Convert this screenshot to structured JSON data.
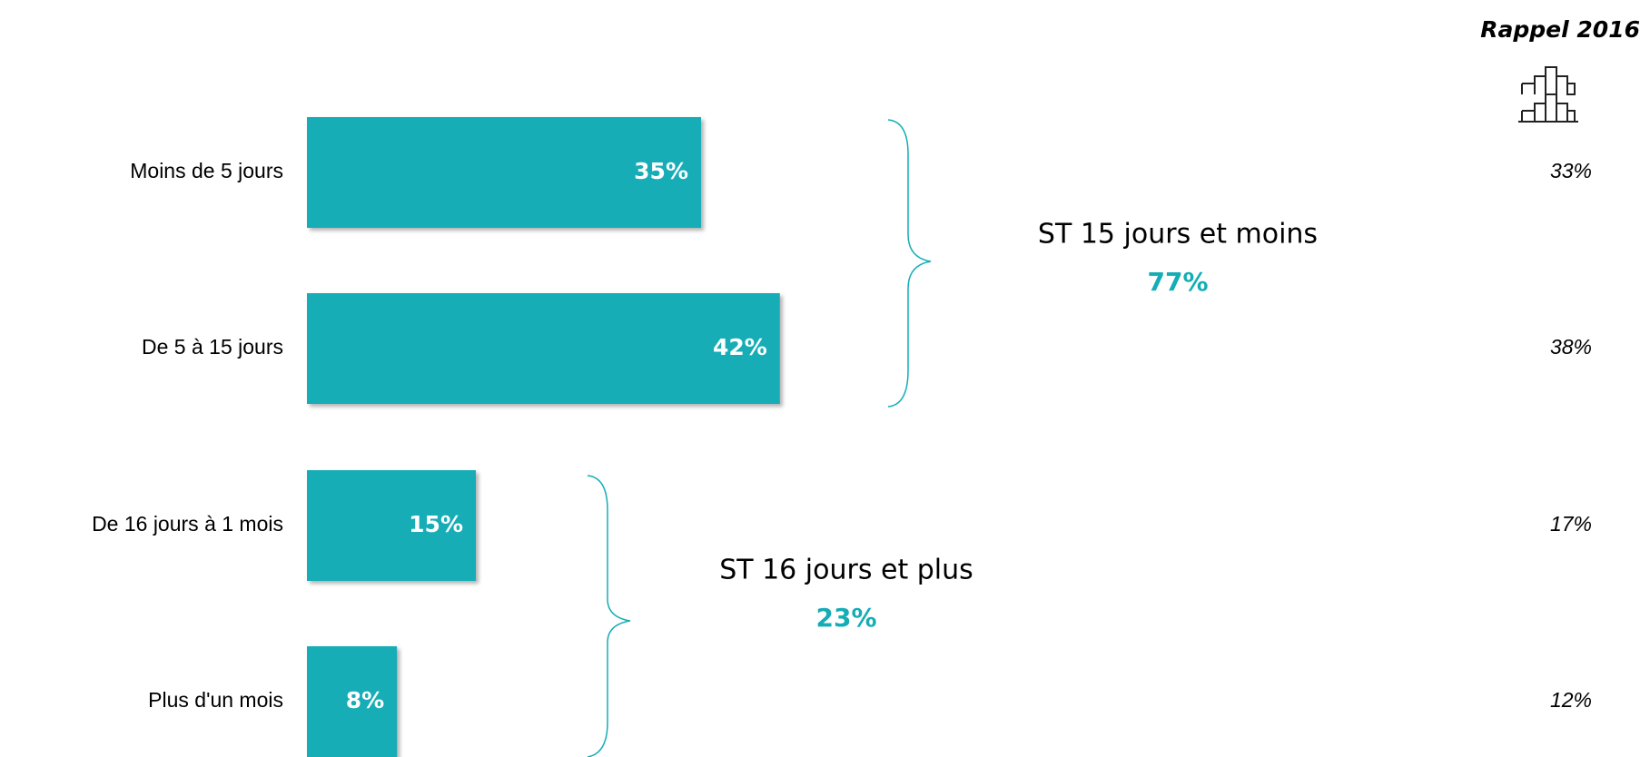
{
  "chart_data": {
    "type": "bar",
    "orientation": "horizontal",
    "categories": [
      "Moins de 5 jours",
      "De 5 à 15 jours",
      "De 16 jours à 1 mois",
      "Plus d'un mois"
    ],
    "values": [
      35,
      42,
      15,
      8
    ],
    "value_labels": [
      "35%",
      "42%",
      "15%",
      "8%"
    ],
    "color": "#14adb6",
    "recall": {
      "title": "Rappel 2016",
      "values": [
        33,
        38,
        17,
        12
      ],
      "value_labels": [
        "33%",
        "38%",
        "17%",
        "12%"
      ]
    },
    "groups": [
      {
        "label": "ST 15 jours et moins",
        "value": 77,
        "value_label": "77%"
      },
      {
        "label": "ST 16 jours et plus",
        "value": 23,
        "value_label": "23%"
      }
    ]
  }
}
